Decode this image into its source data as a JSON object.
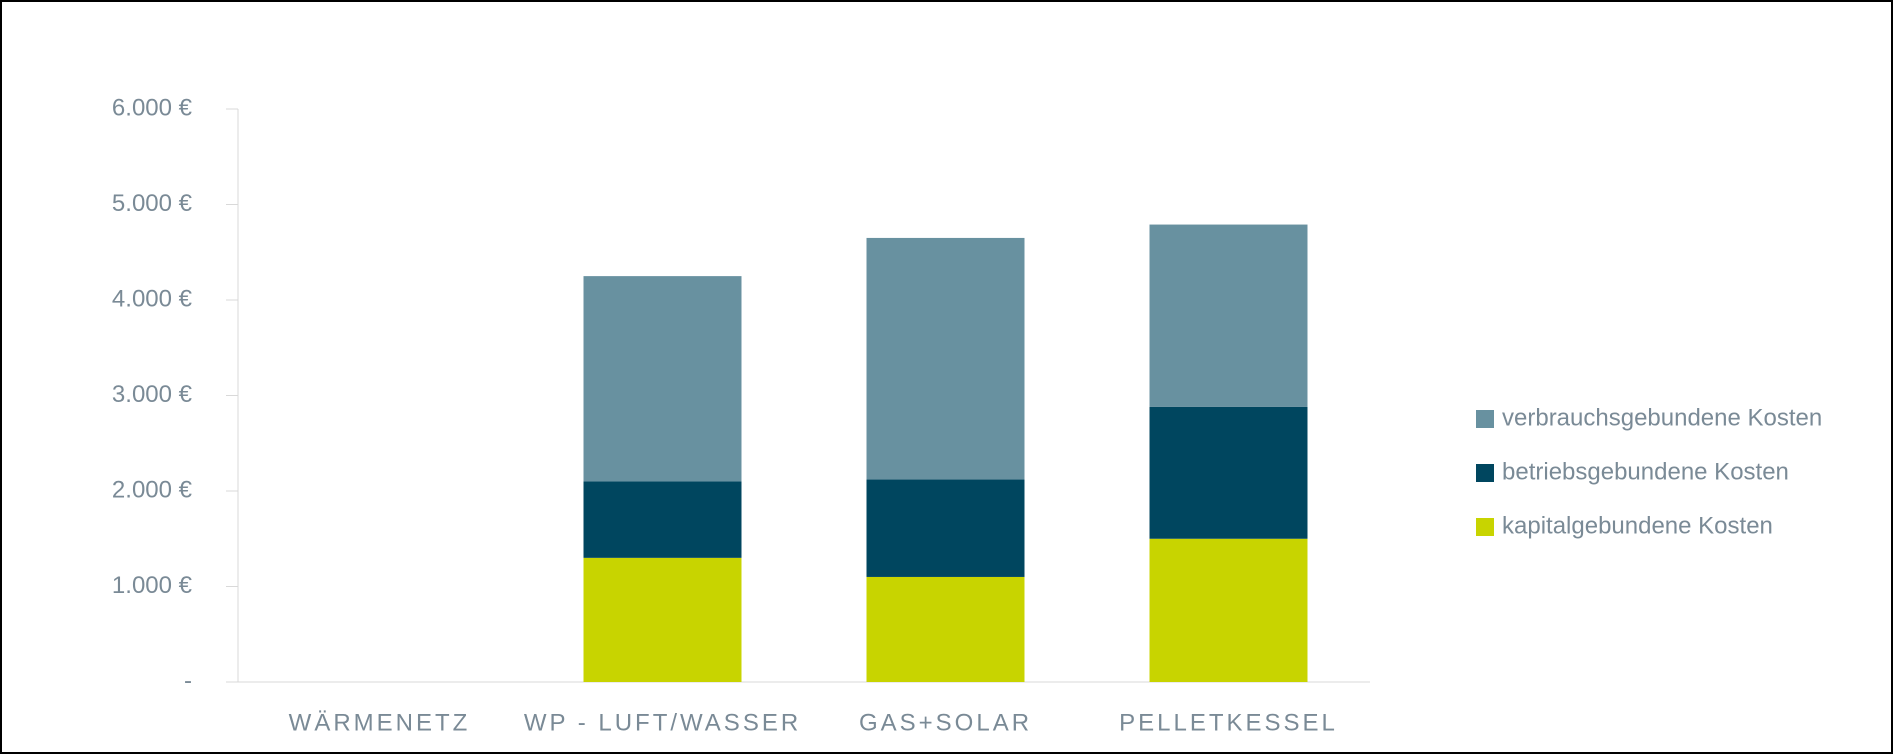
{
  "chart_data": {
    "type": "stacked_bar",
    "categories": [
      "WÄRMENETZ",
      "WP - LUFT/WASSER",
      "GAS+SOLAR",
      "PELLETKESSEL"
    ],
    "series": [
      {
        "name": "kapitalgebundene Kosten",
        "color": "#c8d400",
        "values": [
          0,
          1300,
          1100,
          1500
        ]
      },
      {
        "name": "betriebsgebundene Kosten",
        "color": "#00465f",
        "values": [
          0,
          800,
          1020,
          1380
        ]
      },
      {
        "name": "verbrauchsgebundene Kosten",
        "color": "#6891a0",
        "values": [
          0,
          2150,
          2530,
          1910
        ]
      }
    ],
    "ylim": [
      0,
      6000
    ],
    "yticks": [
      {
        "value": 0,
        "label": "-"
      },
      {
        "value": 1000,
        "label": "1.000 €"
      },
      {
        "value": 2000,
        "label": "2.000 €"
      },
      {
        "value": 3000,
        "label": "3.000 €"
      },
      {
        "value": 4000,
        "label": "4.000 €"
      },
      {
        "value": 5000,
        "label": "5.000 €"
      },
      {
        "value": 6000,
        "label": "6.000 €"
      }
    ],
    "legend": "right"
  }
}
